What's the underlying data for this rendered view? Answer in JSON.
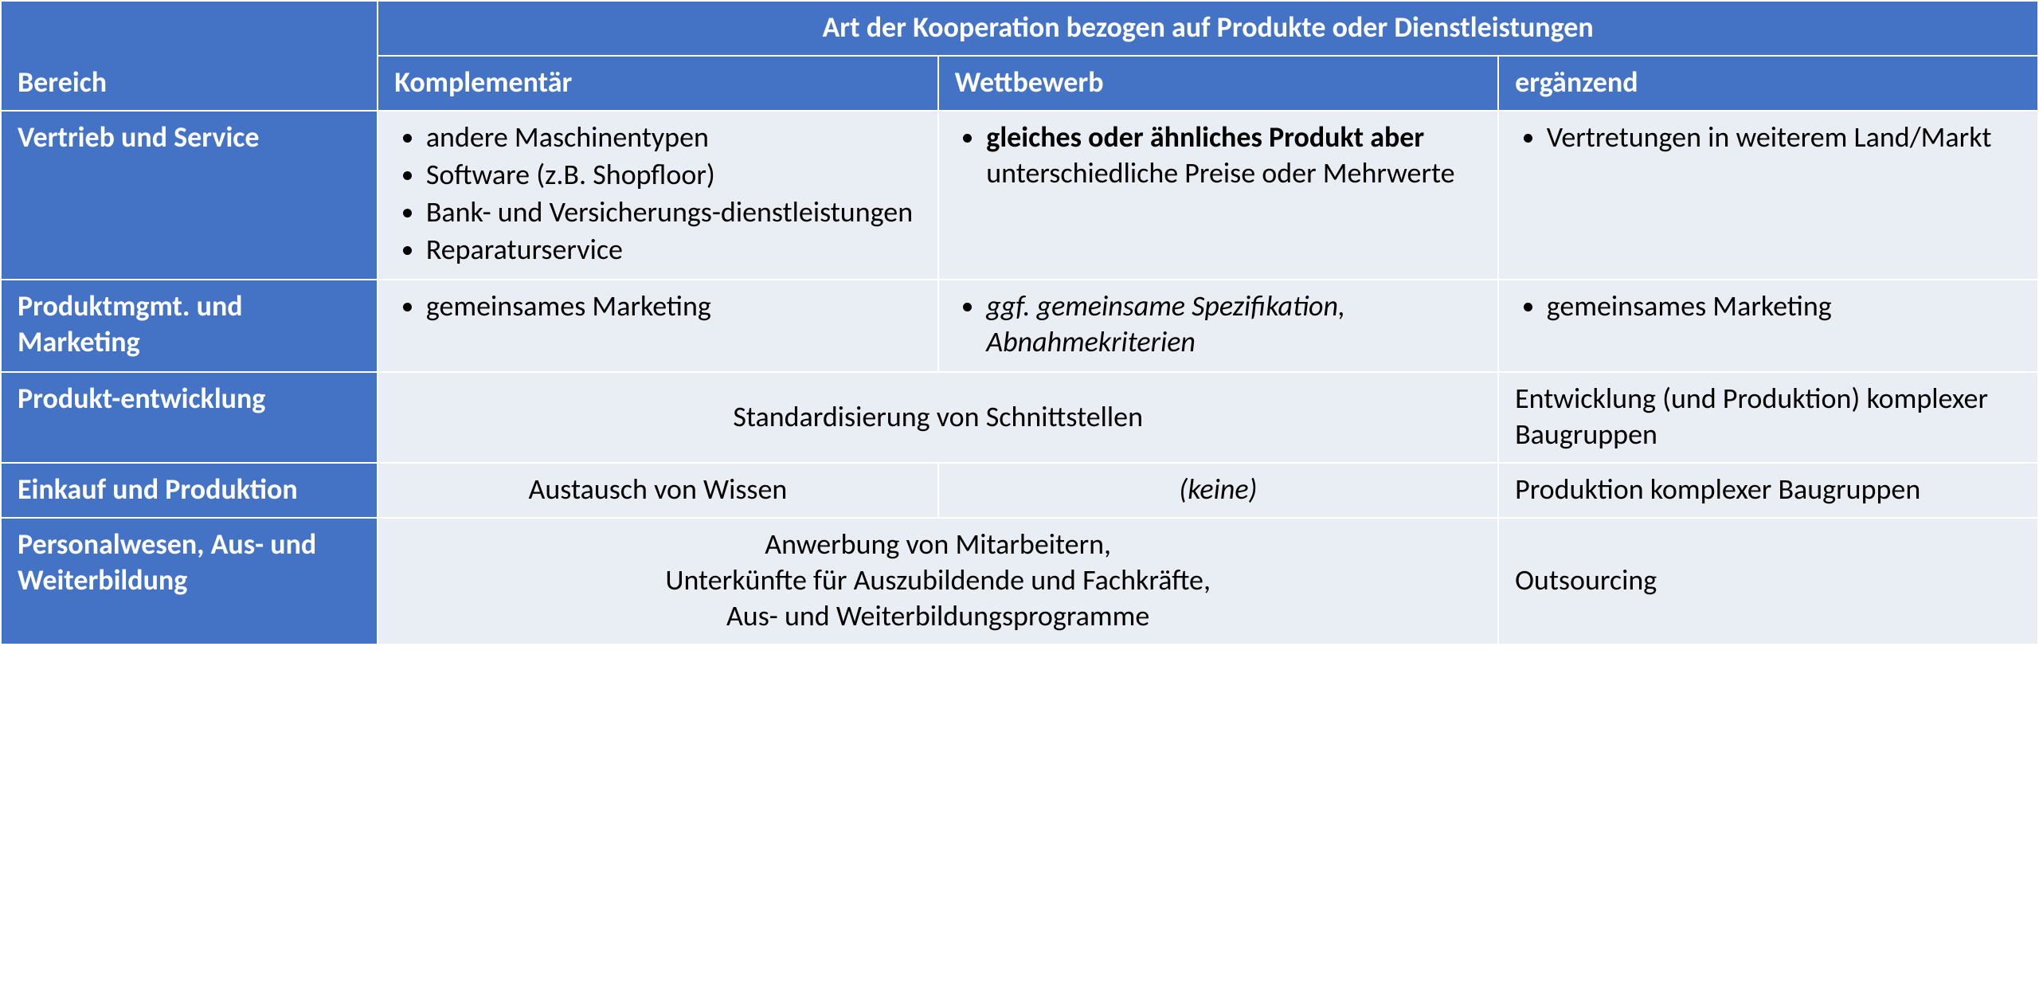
{
  "style": {
    "header_bg": "#4472c4",
    "header_fg": "#ffffff",
    "rowheader_bg": "#4472c4",
    "rowheader_fg": "#ffffff",
    "body_bg": "#e9edf4",
    "body_fg": "#000000",
    "muted_fg": "#7f7f7f",
    "border_color": "#ffffff",
    "font_family": "Calibri",
    "base_font_size_pt": 27
  },
  "table": {
    "type": "table",
    "columns": [
      {
        "key": "bereich",
        "label": "Bereich"
      },
      {
        "key": "komplementaer",
        "label": "Komplementär"
      },
      {
        "key": "wettbewerb",
        "label": "Wettbewerb"
      },
      {
        "key": "ergaenzend",
        "label": "ergänzend"
      }
    ],
    "super_header": "Art der Kooperation bezogen auf Produkte oder Dienstleistungen",
    "rows": [
      {
        "bereich": "Vertrieb und Service",
        "komplementaer": {
          "list": [
            "andere Maschinentypen",
            "Software (z.B. Shopfloor)",
            "Bank- und Versicherungs-dienstleistungen",
            "Reparaturservice"
          ]
        },
        "wettbewerb": {
          "list_rich": [
            {
              "bold_prefix": "gleiches oder ähnliches Produkt aber",
              "rest": " unterschiedliche Preise oder Mehrwerte"
            }
          ]
        },
        "ergaenzend": {
          "list": [
            "Vertretungen in weiterem Land/Markt"
          ]
        }
      },
      {
        "bereich": "Produktmgmt. und Marketing",
        "komplementaer": {
          "list": [
            "gemeinsames Marketing"
          ]
        },
        "wettbewerb": {
          "list_italic": [
            "ggf. gemeinsame Spezifikation, Abnahmekriterien"
          ]
        },
        "ergaenzend": {
          "list": [
            "gemeinsames Marketing"
          ]
        }
      },
      {
        "bereich": "Produkt-entwicklung",
        "merged_12": "Standardisierung von Schnittstellen",
        "ergaenzend_text": "Entwicklung (und Produktion) komplexer Baugruppen"
      },
      {
        "bereich": "Einkauf und Produktion",
        "komplementaer_text": "Austausch von Wissen",
        "wettbewerb_none": "(keine)",
        "ergaenzend_text": "Produktion komplexer Baugruppen"
      },
      {
        "bereich": "Personalwesen, Aus- und Weiterbildung",
        "merged_12_lines": [
          "Anwerbung von Mitarbeitern,",
          "Unterkünfte für Auszubildende und Fachkräfte,",
          "Aus- und Weiterbildungsprogramme"
        ],
        "ergaenzend_text": "Outsourcing"
      }
    ]
  }
}
